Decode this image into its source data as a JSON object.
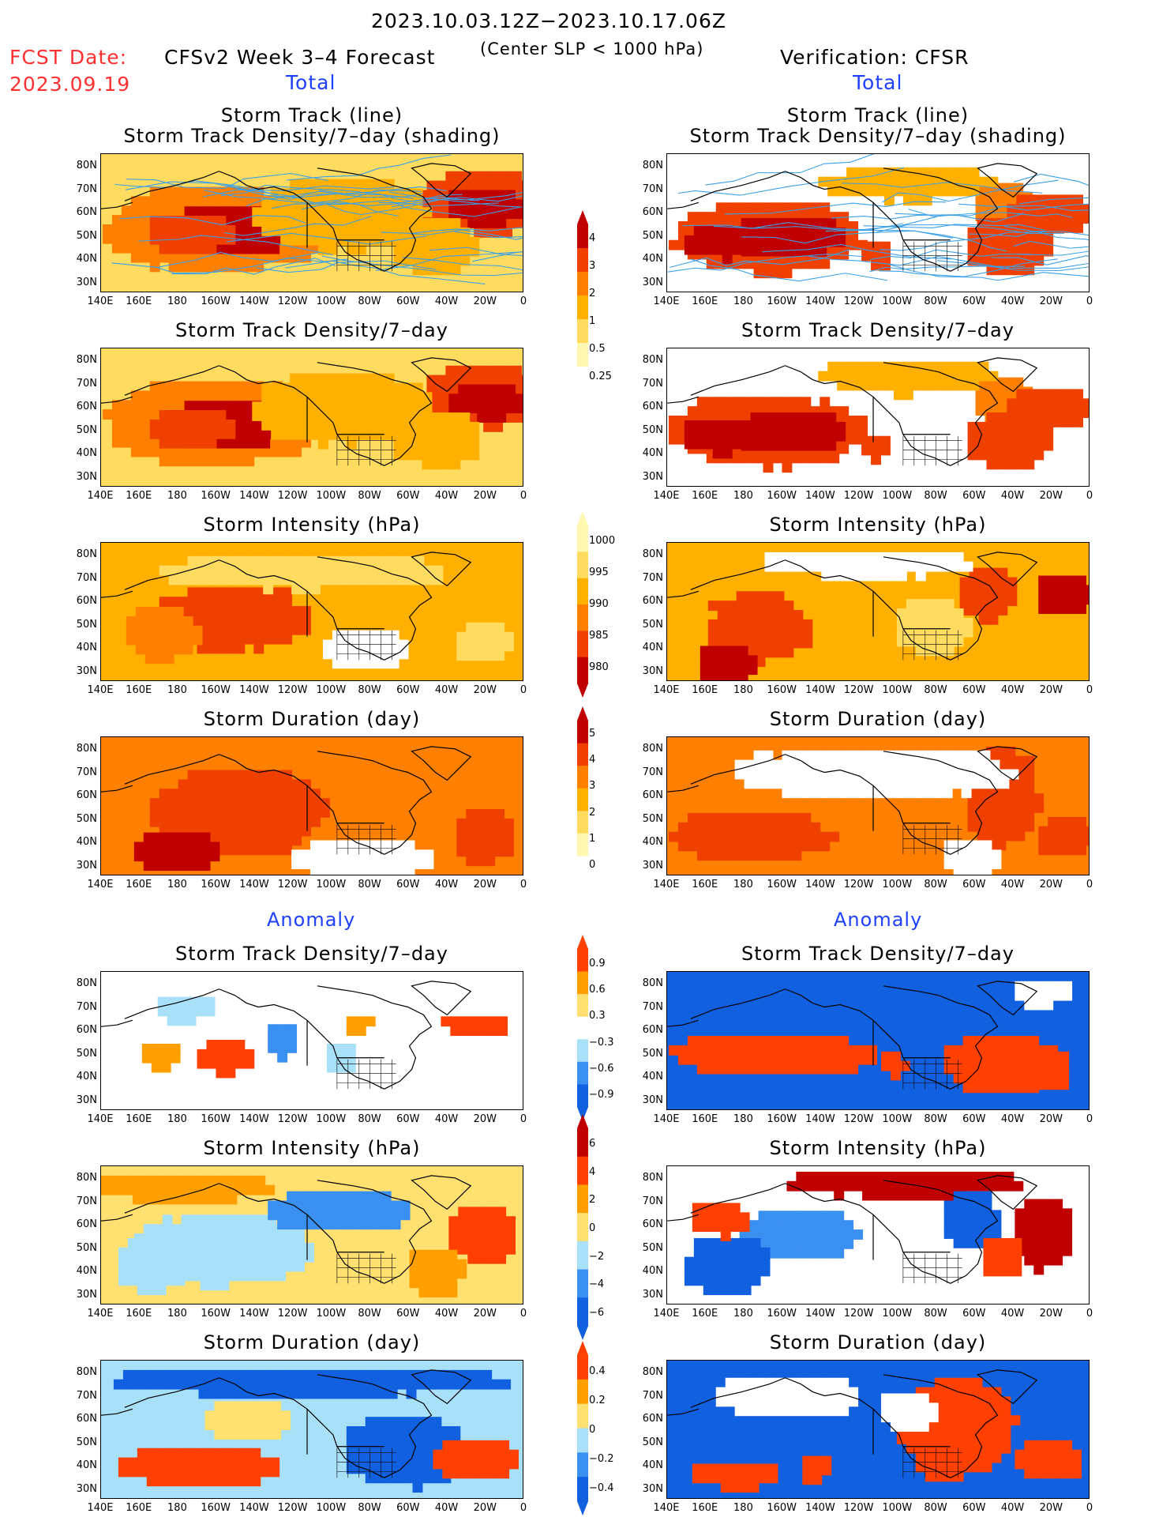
{
  "header": {
    "date_range": "2023.10.03.12Z−2023.10.17.06Z",
    "fcst_label": "FCST Date:",
    "fcst_date": "2023.09.19",
    "model": "CFSv2 Week 3–4 Forecast",
    "condition": "(Center SLP < 1000 hPa)",
    "verification": "Verification: CFSR",
    "total_left": "Total",
    "total_right": "Total",
    "anomaly_left": "Anomaly",
    "anomaly_right": "Anomaly"
  },
  "panels": {
    "track_line": "Storm Track (line)",
    "track_shading": "Storm Track Density/7–day (shading)",
    "density": "Storm Track Density/7–day",
    "intensity": "Storm Intensity (hPa)",
    "duration": "Storm Duration (day)"
  },
  "axes": {
    "lat": [
      "80N",
      "70N",
      "60N",
      "50N",
      "40N",
      "30N"
    ],
    "lon": [
      "140E",
      "160E",
      "180",
      "160W",
      "140W",
      "120W",
      "100W",
      "80W",
      "60W",
      "40W",
      "20W",
      "0"
    ]
  },
  "colorbars": {
    "density_total": [
      "4",
      "3",
      "2",
      "1",
      "0.5",
      "0.25"
    ],
    "intensity_total": [
      "1000",
      "995",
      "990",
      "985",
      "980"
    ],
    "duration_total": [
      "5",
      "4",
      "3",
      "2",
      "1",
      "0"
    ],
    "density_anom": [
      "0.9",
      "0.6",
      "0.3",
      "−0.3",
      "−0.6",
      "−0.9"
    ],
    "intensity_anom": [
      "6",
      "4",
      "2",
      "0",
      "−2",
      "−4",
      "−6"
    ],
    "duration_anom": [
      "0.4",
      "0.2",
      "0",
      "−0.2",
      "−0.4"
    ]
  },
  "colors": {
    "total_scale": [
      "#fff8b0",
      "#ffdc60",
      "#ffb000",
      "#ff8000",
      "#f04000",
      "#c00000"
    ],
    "anom_scale": [
      "#1060e0",
      "#3a90f0",
      "#a8e0f8",
      "#ffffff",
      "#ffe070",
      "#ffa000",
      "#ff4000",
      "#c00000"
    ],
    "tracks": "#3aa0e8",
    "red_text": "#ff3030",
    "blue_text": "#1e40ff"
  }
}
